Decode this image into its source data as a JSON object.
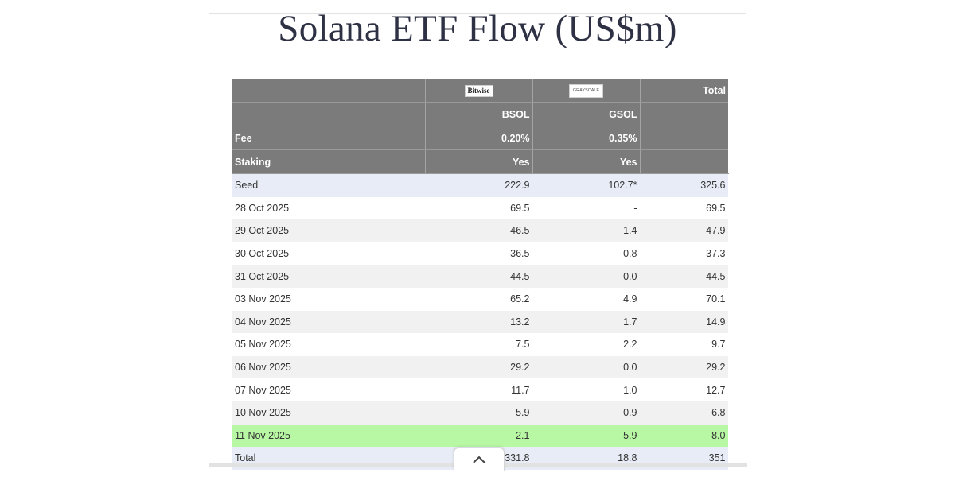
{
  "title": "Solana ETF Flow (US$m)",
  "header": {
    "logos": {
      "bitwise": "Bitwise",
      "grayscale": "GRAYSCALE"
    },
    "total_label": "Total",
    "tickers": [
      "BSOL",
      "GSOL"
    ],
    "fee": {
      "label": "Fee",
      "values": [
        "0.20%",
        "0.35%"
      ]
    },
    "staking": {
      "label": "Staking",
      "values": [
        "Yes",
        "Yes"
      ]
    }
  },
  "rows": [
    {
      "label": "Seed",
      "bsol": "222.9",
      "gsol": "102.7*",
      "total": "325.6"
    },
    {
      "label": "28 Oct 2025",
      "bsol": "69.5",
      "gsol": "-",
      "total": "69.5"
    },
    {
      "label": "29 Oct 2025",
      "bsol": "46.5",
      "gsol": "1.4",
      "total": "47.9"
    },
    {
      "label": "30 Oct 2025",
      "bsol": "36.5",
      "gsol": "0.8",
      "total": "37.3"
    },
    {
      "label": "31 Oct 2025",
      "bsol": "44.5",
      "gsol": "0.0",
      "total": "44.5"
    },
    {
      "label": "03 Nov 2025",
      "bsol": "65.2",
      "gsol": "4.9",
      "total": "70.1"
    },
    {
      "label": "04 Nov 2025",
      "bsol": "13.2",
      "gsol": "1.7",
      "total": "14.9"
    },
    {
      "label": "05 Nov 2025",
      "bsol": "7.5",
      "gsol": "2.2",
      "total": "9.7"
    },
    {
      "label": "06 Nov 2025",
      "bsol": "29.2",
      "gsol": "0.0",
      "total": "29.2"
    },
    {
      "label": "07 Nov 2025",
      "bsol": "11.7",
      "gsol": "1.0",
      "total": "12.7"
    },
    {
      "label": "10 Nov 2025",
      "bsol": "5.9",
      "gsol": "0.9",
      "total": "6.8"
    },
    {
      "label": "11 Nov 2025",
      "bsol": "2.1",
      "gsol": "5.9",
      "total": "8.0"
    },
    {
      "label": "Total",
      "bsol": "331.8",
      "gsol": "18.8",
      "total": "351"
    }
  ],
  "colors": {
    "header_bg": "#7b7b7b",
    "seed_row_bg": "#e8ecf6",
    "highlight_row_bg": "#b8f7a3",
    "stripe_bg": "#f1f1f1"
  },
  "icons": {
    "scroll_top": "chevron-up-icon"
  }
}
